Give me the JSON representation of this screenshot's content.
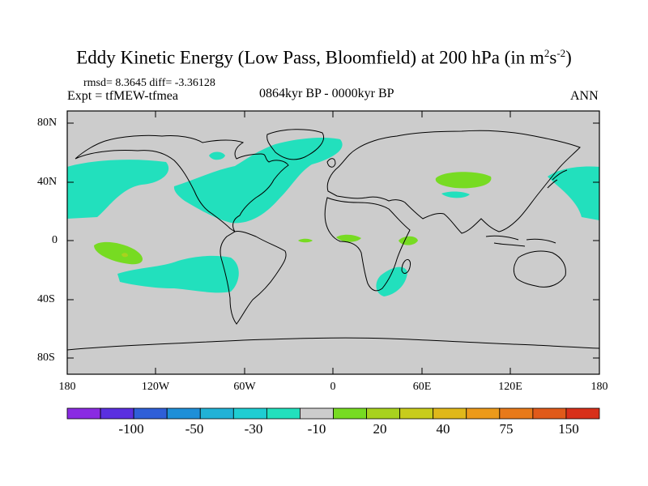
{
  "title": {
    "main": "Eddy Kinetic Energy (Low Pass, Bloomfield) at 200 hPa (in m",
    "sup1": "2",
    "mid": "s",
    "sup2": "-2",
    "end": ")"
  },
  "stats_text": "rmsd= 8.3645 diff= -3.36128",
  "expt_text": "Expt = tfMEW-tfmea",
  "period_text": "0864kyr BP - 0000kyr BP",
  "season_text": "ANN",
  "lat_labels": [
    "80N",
    "40N",
    "0",
    "40S",
    "80S"
  ],
  "lon_labels": [
    "180",
    "120W",
    "60W",
    "0",
    "60E",
    "120E",
    "180"
  ],
  "colorbar": {
    "colors": [
      "#8a2be2",
      "#5a2fe0",
      "#2f5fd8",
      "#1e8fd8",
      "#21b2d6",
      "#1fcdd2",
      "#22e0bd",
      "#cccccc",
      "#77db22",
      "#a8d21e",
      "#c8cc1c",
      "#e0b81a",
      "#ec9a1a",
      "#e87a1a",
      "#e05a1a",
      "#d8301a"
    ],
    "labels": [
      "-100",
      "-50",
      "-30",
      "-10",
      "20",
      "40",
      "75",
      "150"
    ]
  },
  "colors": {
    "ocean_bg": "#cccccc",
    "neg_fill": "#22e0bd",
    "pos_fill": "#77db22",
    "pos_strong": "#a8d21e"
  }
}
